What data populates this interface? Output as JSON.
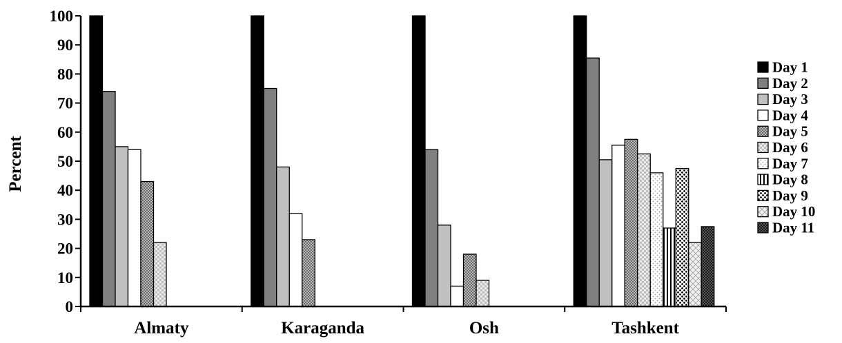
{
  "chart_data": {
    "type": "bar",
    "ylabel": "Percent",
    "xlabel": "",
    "ylim": [
      0,
      100
    ],
    "yticks": [
      0,
      10,
      20,
      30,
      40,
      50,
      60,
      70,
      80,
      90,
      100
    ],
    "legend_position": "right",
    "grid": false,
    "categories": [
      "Almaty",
      "Karaganda",
      "Osh",
      "Tashkent"
    ],
    "series": [
      {
        "name": "Day 1",
        "values": [
          100,
          100,
          100,
          100
        ],
        "fill": "#000000",
        "pattern": "solid"
      },
      {
        "name": "Day 2",
        "values": [
          74,
          75,
          54,
          85.5
        ],
        "fill": "#808080",
        "pattern": "solid"
      },
      {
        "name": "Day 3",
        "values": [
          55,
          48,
          28,
          50.5
        ],
        "fill": "#c0c0c0",
        "pattern": "solid"
      },
      {
        "name": "Day 4",
        "values": [
          54,
          32,
          7,
          55.5
        ],
        "fill": "#ffffff",
        "pattern": "solid"
      },
      {
        "name": "Day 5",
        "values": [
          43,
          23,
          18,
          57.5
        ],
        "fill": "#9a9a9a",
        "pattern": "dense-dots"
      },
      {
        "name": "Day 6",
        "values": [
          22,
          null,
          9,
          52.5
        ],
        "fill": "#dcdcdc",
        "pattern": "checker"
      },
      {
        "name": "Day 7",
        "values": [
          null,
          null,
          null,
          46
        ],
        "fill": "#f3f3f3",
        "pattern": "light-dots"
      },
      {
        "name": "Day 8",
        "values": [
          null,
          null,
          null,
          27
        ],
        "fill": "#ffffff",
        "pattern": "vertical-lines"
      },
      {
        "name": "Day 9",
        "values": [
          null,
          null,
          null,
          47.5
        ],
        "fill": "#ffffff",
        "pattern": "dots"
      },
      {
        "name": "Day 10",
        "values": [
          null,
          null,
          null,
          22
        ],
        "fill": "#ececec",
        "pattern": "diagonal-cross"
      },
      {
        "name": "Day 11",
        "values": [
          null,
          null,
          null,
          27.5
        ],
        "fill": "#444444",
        "pattern": "dark-grid"
      }
    ]
  }
}
